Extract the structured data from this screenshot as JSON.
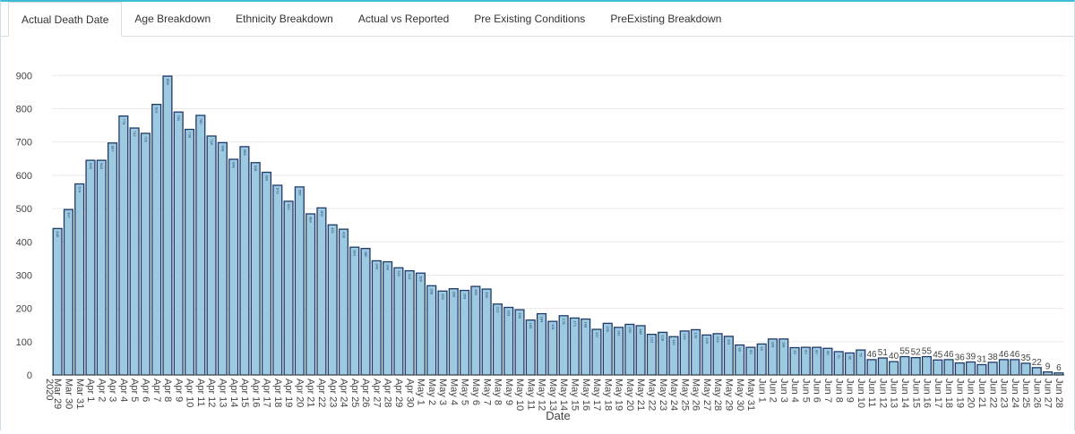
{
  "tabs": [
    "Actual Death Date",
    "Age Breakdown",
    "Ethnicity Breakdown",
    "Actual vs Reported",
    "Pre Existing Conditions",
    "PreExisting Breakdown"
  ],
  "chart_data": {
    "type": "bar",
    "x_title": "Date",
    "x_year_label": "2020",
    "categories": [
      "Mar 29",
      "Mar 30",
      "Mar 31",
      "Apr 1",
      "Apr 2",
      "Apr 3",
      "Apr 4",
      "Apr 5",
      "Apr 6",
      "Apr 7",
      "Apr 8",
      "Apr 9",
      "Apr 10",
      "Apr 11",
      "Apr 12",
      "Apr 13",
      "Apr 14",
      "Apr 15",
      "Apr 16",
      "Apr 17",
      "Apr 18",
      "Apr 19",
      "Apr 20",
      "Apr 21",
      "Apr 22",
      "Apr 23",
      "Apr 24",
      "Apr 25",
      "Apr 26",
      "Apr 27",
      "Apr 28",
      "Apr 29",
      "Apr 30",
      "May 1",
      "May 2",
      "May 3",
      "May 4",
      "May 5",
      "May 6",
      "May 7",
      "May 8",
      "May 9",
      "May 10",
      "May 11",
      "May 12",
      "May 13",
      "May 14",
      "May 15",
      "May 16",
      "May 17",
      "May 18",
      "May 19",
      "May 20",
      "May 21",
      "May 22",
      "May 23",
      "May 24",
      "May 25",
      "May 26",
      "May 27",
      "May 28",
      "May 29",
      "May 30",
      "May 31",
      "Jun 1",
      "Jun 2",
      "Jun 3",
      "Jun 4",
      "Jun 5",
      "Jun 6",
      "Jun 7",
      "Jun 8",
      "Jun 9",
      "Jun 10",
      "Jun 11",
      "Jun 12",
      "Jun 13",
      "Jun 14",
      "Jun 15",
      "Jun 16",
      "Jun 17",
      "Jun 18",
      "Jun 19",
      "Jun 20",
      "Jun 21",
      "Jun 22",
      "Jun 23",
      "Jun 24",
      "Jun 25",
      "Jun 26",
      "Jun 27",
      "Jun 28"
    ],
    "values": [
      440,
      497,
      574,
      645,
      645,
      697,
      778,
      742,
      726,
      813,
      898,
      790,
      738,
      780,
      718,
      698,
      648,
      686,
      638,
      609,
      570,
      522,
      565,
      484,
      502,
      451,
      438,
      384,
      380,
      343,
      340,
      322,
      313,
      306,
      268,
      252,
      259,
      254,
      266,
      258,
      213,
      203,
      196,
      165,
      184,
      161,
      178,
      171,
      168,
      137,
      155,
      143,
      152,
      148,
      122,
      128,
      115,
      132,
      136,
      120,
      124,
      116,
      90,
      83,
      93,
      108,
      108,
      82,
      83,
      83,
      80,
      70,
      66,
      75,
      46,
      51,
      40,
      55,
      52,
      55,
      45,
      46,
      36,
      39,
      31,
      38,
      46,
      46,
      35,
      22,
      9,
      6
    ],
    "color": "#9ecae1",
    "edge_color": "#1f3a68",
    "ylim": [
      0,
      960
    ],
    "yticks": [
      0,
      100,
      200,
      300,
      400,
      500,
      600,
      700,
      800,
      900
    ],
    "grid": true
  }
}
